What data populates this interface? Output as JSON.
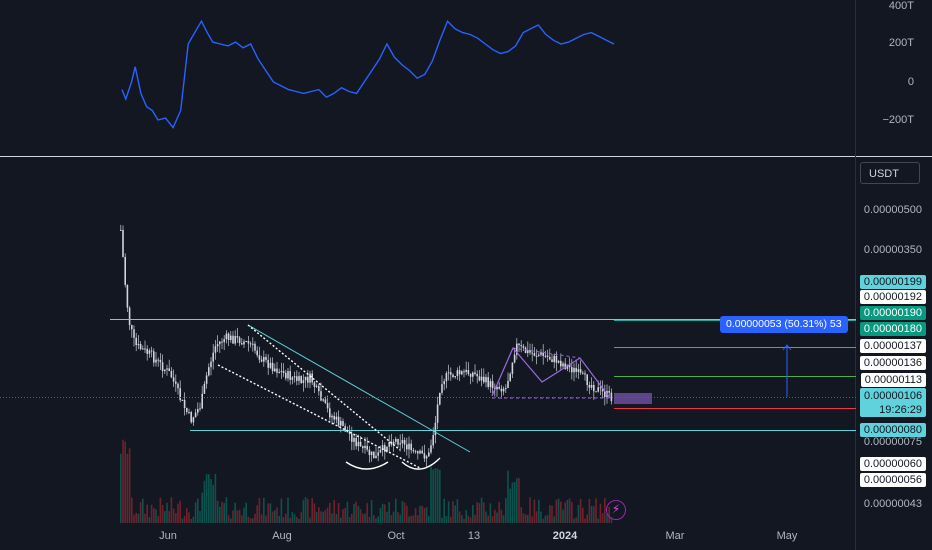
{
  "chart_data": [
    {
      "type": "line",
      "title": "",
      "ylim": [
        -300,
        400
      ],
      "ytick_labels": [
        "400T",
        "200T",
        "0",
        "−200T"
      ],
      "color": "#2962ff",
      "x": [
        "2023-05-05",
        "2023-05-07",
        "2023-05-10",
        "2023-05-12",
        "2023-05-15",
        "2023-05-18",
        "2023-05-21",
        "2023-05-24",
        "2023-05-28",
        "2023-06-01",
        "2023-06-05",
        "2023-06-09",
        "2023-06-13",
        "2023-06-16",
        "2023-06-19",
        "2023-06-22",
        "2023-06-26",
        "2023-06-30",
        "2023-07-04",
        "2023-07-08",
        "2023-07-12",
        "2023-07-16",
        "2023-07-20",
        "2023-07-24",
        "2023-07-28",
        "2023-08-01",
        "2023-08-05",
        "2023-08-09",
        "2023-08-13",
        "2023-08-17",
        "2023-08-21",
        "2023-08-25",
        "2023-08-29",
        "2023-09-02",
        "2023-09-06",
        "2023-09-10",
        "2023-09-14",
        "2023-09-18",
        "2023-09-22",
        "2023-09-26",
        "2023-09-30",
        "2023-10-04",
        "2023-10-08",
        "2023-10-12",
        "2023-10-16",
        "2023-10-20",
        "2023-10-24",
        "2023-10-28",
        "2023-11-01",
        "2023-11-05",
        "2023-11-09",
        "2023-11-13",
        "2023-11-17",
        "2023-11-21",
        "2023-11-25",
        "2023-11-29",
        "2023-12-03",
        "2023-12-07",
        "2023-12-11",
        "2023-12-15",
        "2023-12-19",
        "2023-12-23",
        "2023-12-27",
        "2023-12-31",
        "2024-01-04",
        "2024-01-08",
        "2024-01-12",
        "2024-01-16",
        "2024-01-20"
      ],
      "values": [
        -40,
        -90,
        0,
        80,
        -60,
        -130,
        -150,
        -200,
        -190,
        -240,
        -150,
        200,
        270,
        320,
        260,
        210,
        200,
        190,
        210,
        180,
        200,
        120,
        60,
        0,
        -20,
        -40,
        -50,
        -60,
        -50,
        -40,
        -80,
        -60,
        -30,
        -50,
        -60,
        0,
        60,
        120,
        200,
        130,
        90,
        60,
        20,
        40,
        110,
        220,
        320,
        280,
        260,
        250,
        230,
        200,
        170,
        150,
        160,
        190,
        260,
        280,
        300,
        250,
        220,
        200,
        210,
        230,
        250,
        260,
        240,
        220,
        200
      ]
    },
    {
      "type": "candlestick",
      "title": "",
      "ylabel": "USDT",
      "price_tick_labels": [
        "0.00000500",
        "0.00000350",
        "0.00000075",
        "0.00000043"
      ],
      "x_tick_labels": [
        "Jun",
        "Aug",
        "Oct",
        "13",
        "2024",
        "Mar",
        "May"
      ],
      "price_labels": [
        {
          "value": "0.00000199",
          "style": "cyan"
        },
        {
          "value": "0.00000192",
          "style": "white"
        },
        {
          "value": "0.00000190",
          "style": "green"
        },
        {
          "value": "0.00000180",
          "style": "green"
        },
        {
          "value": "0.00000137",
          "style": "white"
        },
        {
          "value": "0.00000136",
          "style": "white"
        },
        {
          "value": "0.00000113",
          "style": "white"
        },
        {
          "value": "0.00000080",
          "style": "cyan"
        },
        {
          "value": "0.00000060",
          "style": "white"
        },
        {
          "value": "0.00000056",
          "style": "white"
        }
      ],
      "last_price": "0.00000106",
      "countdown": "19:26:29",
      "measure_label": "0.00000053 (50.31%) 53",
      "colors": {
        "up": "#089981",
        "down": "#f23645",
        "line": "#5fd2dc",
        "measure": "#2962ff",
        "pattern": "#9c6ade"
      }
    }
  ]
}
